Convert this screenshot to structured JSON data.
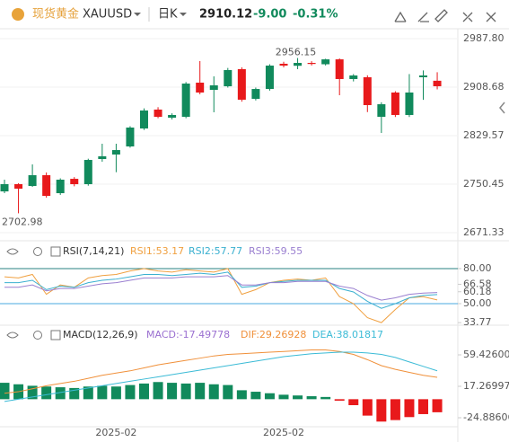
{
  "header": {
    "name": "现货黄金",
    "symbol": "XAUUSD",
    "period": "日K",
    "price": "2910.12",
    "change": "-9.00",
    "change_pct": "-0.31%"
  },
  "chart_data": [
    {
      "type": "candlestick",
      "up_color": "#118a5c",
      "down_color": "#e8191b",
      "categories": [
        null,
        null,
        null,
        null,
        null,
        null,
        null,
        null,
        "2025-02",
        null,
        null,
        null,
        null,
        null,
        null,
        null,
        null,
        null,
        null,
        null,
        "2025-02",
        null,
        null,
        null,
        null,
        null,
        null,
        null,
        null,
        null,
        null,
        null
      ],
      "open": [
        2738.7,
        2750.5,
        2747.5,
        2765.1,
        2735.8,
        2759.2,
        2750.5,
        2791.5,
        2798.8,
        2812.0,
        2841.3,
        2872.1,
        2858.9,
        2860.3,
        2916.0,
        2904.3,
        2910.1,
        2938.0,
        2889.6,
        2905.7,
        2946.8,
        2943.5,
        2948.2,
        2946,
        2954,
        2921.9,
        2924.8,
        2860.3,
        2899.9,
        2863.3,
        2924.8,
        2919.12
      ],
      "close": [
        2750.5,
        2743.1,
        2765.1,
        2731.4,
        2757.8,
        2750.5,
        2790.0,
        2795.9,
        2806.1,
        2842.8,
        2870.6,
        2860.3,
        2863.3,
        2914.5,
        2899.9,
        2911.6,
        2936.5,
        2888.2,
        2905.7,
        2943.8,
        2943.8,
        2948.2,
        2946.5,
        2954,
        2921.9,
        2927.7,
        2879.4,
        2880.8,
        2863.3,
        2899.9,
        2927.7,
        2910.12
      ],
      "high": [
        2757.8,
        2752,
        2782.7,
        2769.5,
        2760,
        2762,
        2792,
        2816.4,
        2816.4,
        2845,
        2874,
        2876,
        2866,
        2917,
        2951.2,
        2926.3,
        2940,
        2941,
        2908,
        2946,
        2950,
        2956.15,
        2951,
        2955,
        2955.5,
        2930,
        2928,
        2884,
        2902,
        2930,
        2936,
        2933
      ],
      "low": [
        2735.8,
        2702.98,
        2746.1,
        2728.5,
        2733,
        2747,
        2748,
        2787.1,
        2770,
        2810,
        2839,
        2858,
        2856,
        2858,
        2897.0,
        2867.7,
        2908,
        2885,
        2887,
        2903,
        2941,
        2938,
        2944,
        2944,
        2895.5,
        2918,
        2868,
        2834.0,
        2860,
        2860,
        2888,
        2905
      ],
      "high_label": "2956.15",
      "low_label": "2702.98",
      "ylim": [
        2662.6,
        2999.5
      ],
      "yticks": [
        {
          "value": 2987.8,
          "label": "2987.80"
        },
        2908.68,
        2829.57,
        2750.45,
        2671.33
      ],
      "grid": true
    },
    {
      "type": "line",
      "title": "RSI(7,14,21)",
      "ylim": [
        33.1,
        86.9
      ],
      "yticks": [
        {
          "value": 80,
          "label": "80.00"
        },
        66.58,
        60.18,
        {
          "value": 50,
          "label": "50.00"
        },
        33.77
      ],
      "levels": [
        {
          "value": 80,
          "color": "#2a8080"
        },
        {
          "value": 50,
          "color": "#4aa8e0"
        }
      ],
      "series": [
        {
          "name": "RSI1:53.17",
          "color": "#f0a040",
          "values": [
            73,
            72,
            75,
            58,
            66,
            64,
            72,
            74,
            75,
            78,
            80,
            78,
            77,
            79,
            78,
            77,
            80,
            58,
            62,
            68,
            70,
            71,
            70,
            72,
            56,
            50,
            38,
            33.77,
            45,
            55,
            56,
            53.17
          ]
        },
        {
          "name": "RSI2:57.77",
          "color": "#3bb0d0",
          "values": [
            68,
            68,
            70,
            62,
            65,
            64,
            68,
            70,
            71,
            73,
            75,
            75,
            74,
            75,
            76,
            75,
            77,
            64,
            65,
            68,
            69,
            70,
            70,
            70,
            63,
            60,
            52,
            46,
            50,
            55,
            57,
            57.77
          ]
        },
        {
          "name": "RSI3:59.55",
          "color": "#9a7fd0",
          "values": [
            64,
            64,
            66,
            61,
            63,
            63,
            65,
            67,
            68,
            70,
            72,
            72,
            72,
            73,
            73,
            73,
            74,
            66,
            66,
            68,
            68,
            69,
            69,
            69,
            65,
            63,
            57,
            53,
            55,
            58,
            59,
            59.55
          ]
        }
      ]
    },
    {
      "type": "macd",
      "title": "MACD(12,26,9)",
      "ylim": [
        -36.9,
        77.5
      ],
      "yticks": [
        {
          "value": 59.426,
          "label": "59.42600"
        },
        17.26997,
        -24.88606
      ],
      "up_color": "#118a5c",
      "down_color": "#e8191b",
      "series": [
        {
          "name": "MACD:-17.49778",
          "color": "#9a6fd0",
          "values": [
            22,
            20,
            18,
            17,
            16,
            15,
            17,
            18,
            17,
            19,
            21,
            23,
            22,
            21,
            22,
            20,
            19,
            12,
            10,
            8,
            6,
            5,
            4,
            3,
            -2,
            -8,
            -22,
            -30,
            -28,
            -24,
            -20,
            -17.49778
          ]
        },
        {
          "name": "DIF:29.26928",
          "color": "#f0903a",
          "values": [
            8,
            10,
            14,
            18,
            21,
            24,
            28,
            32,
            35,
            38,
            42,
            46,
            49,
            52,
            55,
            58,
            60,
            61,
            62,
            63,
            64,
            65,
            66,
            66,
            64,
            60,
            53,
            45,
            40,
            36,
            32,
            29.26928
          ]
        },
        {
          "name": "DEA:38.01817",
          "color": "#3bbbd6",
          "values": [
            -3,
            0,
            3,
            6,
            9,
            12,
            15,
            18,
            21,
            24,
            27,
            30,
            33,
            36,
            39,
            42,
            45,
            48,
            51,
            54,
            57,
            59,
            61,
            62,
            63,
            63,
            62,
            60,
            56,
            50,
            44,
            38.01817
          ]
        }
      ]
    }
  ]
}
